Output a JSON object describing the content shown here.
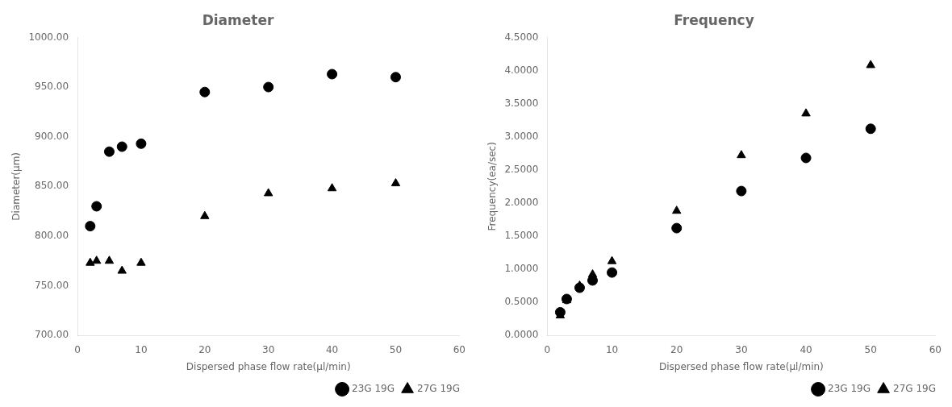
{
  "chart_data": [
    {
      "type": "scatter",
      "title": "Diameter",
      "xlabel": "Dispersed phase flow rate(μl/min)",
      "ylabel": "Diameter(μm)",
      "xlim": [
        0,
        60
      ],
      "xticks": [
        0,
        10,
        20,
        30,
        40,
        50,
        60
      ],
      "ylim": [
        700,
        1000
      ],
      "yticks": [
        {
          "value": 700,
          "label": "700.00"
        },
        {
          "value": 750,
          "label": "750.00"
        },
        {
          "value": 800,
          "label": "800.00"
        },
        {
          "value": 850,
          "label": "850.00"
        },
        {
          "value": 900,
          "label": "900.00"
        },
        {
          "value": 950,
          "label": "950.00"
        },
        {
          "value": 1000,
          "label": "1000.00"
        }
      ],
      "grid": false,
      "legend": "lower right",
      "series": [
        {
          "name": "23G 19G",
          "color": "black",
          "marker": "circle",
          "x": [
            2,
            3,
            5,
            7,
            10,
            20,
            30,
            40,
            50
          ],
          "values": [
            810,
            830,
            885,
            890,
            893,
            945,
            950,
            963,
            960
          ]
        },
        {
          "name": "27G 19G",
          "color": "black",
          "marker": "triangle",
          "x": [
            2,
            3,
            5,
            7,
            10,
            20,
            30,
            40,
            50
          ],
          "values": [
            773,
            775,
            775,
            765,
            773,
            820,
            843,
            848,
            853
          ]
        }
      ]
    },
    {
      "type": "scatter",
      "title": "Frequency",
      "xlabel": "Dispersed phase flow rate(μl/min)",
      "ylabel": "Frequency(ea/sec)",
      "xlim": [
        0,
        60
      ],
      "xticks": [
        0,
        10,
        20,
        30,
        40,
        50,
        60
      ],
      "ylim": [
        0,
        4.5
      ],
      "yticks": [
        {
          "value": 0,
          "label": "0.0000"
        },
        {
          "value": 0.5,
          "label": "0.5000"
        },
        {
          "value": 1,
          "label": "1.0000"
        },
        {
          "value": 1.5,
          "label": "1.5000"
        },
        {
          "value": 2,
          "label": "2.0000"
        },
        {
          "value": 2.5,
          "label": "2.5000"
        },
        {
          "value": 3,
          "label": "3.0000"
        },
        {
          "value": 3.5,
          "label": "3.5000"
        },
        {
          "value": 4,
          "label": "4.0000"
        },
        {
          "value": 4.5,
          "label": "4.5000"
        }
      ],
      "grid": false,
      "legend": "lower right",
      "series": [
        {
          "name": "23G 19G",
          "color": "black",
          "marker": "circle",
          "x": [
            2,
            3,
            5,
            7,
            10,
            20,
            30,
            40,
            50
          ],
          "values": [
            0.35,
            0.55,
            0.72,
            0.83,
            0.95,
            1.62,
            2.18,
            2.68,
            3.12
          ]
        },
        {
          "name": "27G 19G",
          "color": "black",
          "marker": "triangle",
          "x": [
            2,
            3,
            5,
            7,
            10,
            20,
            30,
            40,
            50
          ],
          "values": [
            0.3,
            0.53,
            0.75,
            0.92,
            1.12,
            1.88,
            2.72,
            3.35,
            4.08
          ]
        }
      ]
    }
  ]
}
